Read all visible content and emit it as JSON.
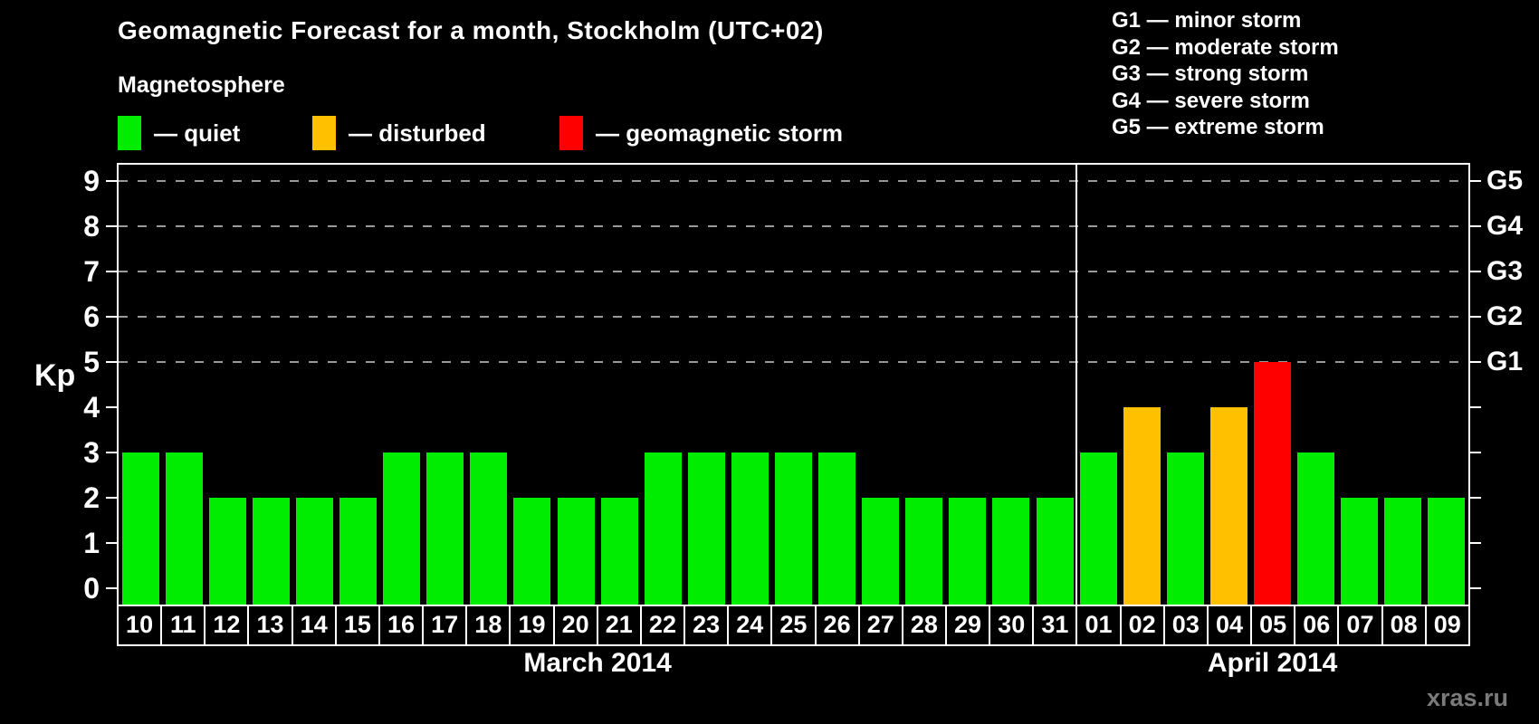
{
  "title": "Geomagnetic Forecast for a month, Stockholm (UTC+02)",
  "subtitle": "Magnetosphere",
  "legend": {
    "quiet": {
      "label": "— quiet",
      "color": "#00ec00"
    },
    "disturbed": {
      "label": "— disturbed",
      "color": "#ffc000"
    },
    "storm": {
      "label": "— geomagnetic storm",
      "color": "#ff0000"
    }
  },
  "storm_scale_legend": [
    "G1 — minor storm",
    "G2 — moderate storm",
    "G3 — strong storm",
    "G4 — severe storm",
    "G5 — extreme storm"
  ],
  "watermark": "xras.ru",
  "chart_data": {
    "type": "bar",
    "ylabel": "Kp",
    "ylim": [
      0,
      9
    ],
    "yticks": [
      0,
      1,
      2,
      3,
      4,
      5,
      6,
      7,
      8,
      9
    ],
    "gridlines_at": [
      5,
      6,
      7,
      8,
      9
    ],
    "grid": "dashed horizontal at Kp 5-9",
    "legend_position": "top",
    "right_axis_labels": [
      {
        "kp": 5,
        "label": "G1"
      },
      {
        "kp": 6,
        "label": "G2"
      },
      {
        "kp": 7,
        "label": "G3"
      },
      {
        "kp": 8,
        "label": "G4"
      },
      {
        "kp": 9,
        "label": "G5"
      }
    ],
    "months": [
      {
        "label": "March 2014",
        "days": 22
      },
      {
        "label": "April 2014",
        "days": 9
      }
    ],
    "categories": [
      "10",
      "11",
      "12",
      "13",
      "14",
      "15",
      "16",
      "17",
      "18",
      "19",
      "20",
      "21",
      "22",
      "23",
      "24",
      "25",
      "26",
      "27",
      "28",
      "29",
      "30",
      "31",
      "01",
      "02",
      "03",
      "04",
      "05",
      "06",
      "07",
      "08",
      "09"
    ],
    "values": [
      3,
      3,
      2,
      2,
      2,
      2,
      3,
      3,
      3,
      2,
      2,
      2,
      3,
      3,
      3,
      3,
      3,
      2,
      2,
      2,
      2,
      2,
      3,
      4,
      3,
      4,
      5,
      3,
      2,
      2,
      2
    ],
    "color_rule": {
      "quiet_max": 3,
      "disturbed_value": 4,
      "storm_min": 5
    }
  }
}
